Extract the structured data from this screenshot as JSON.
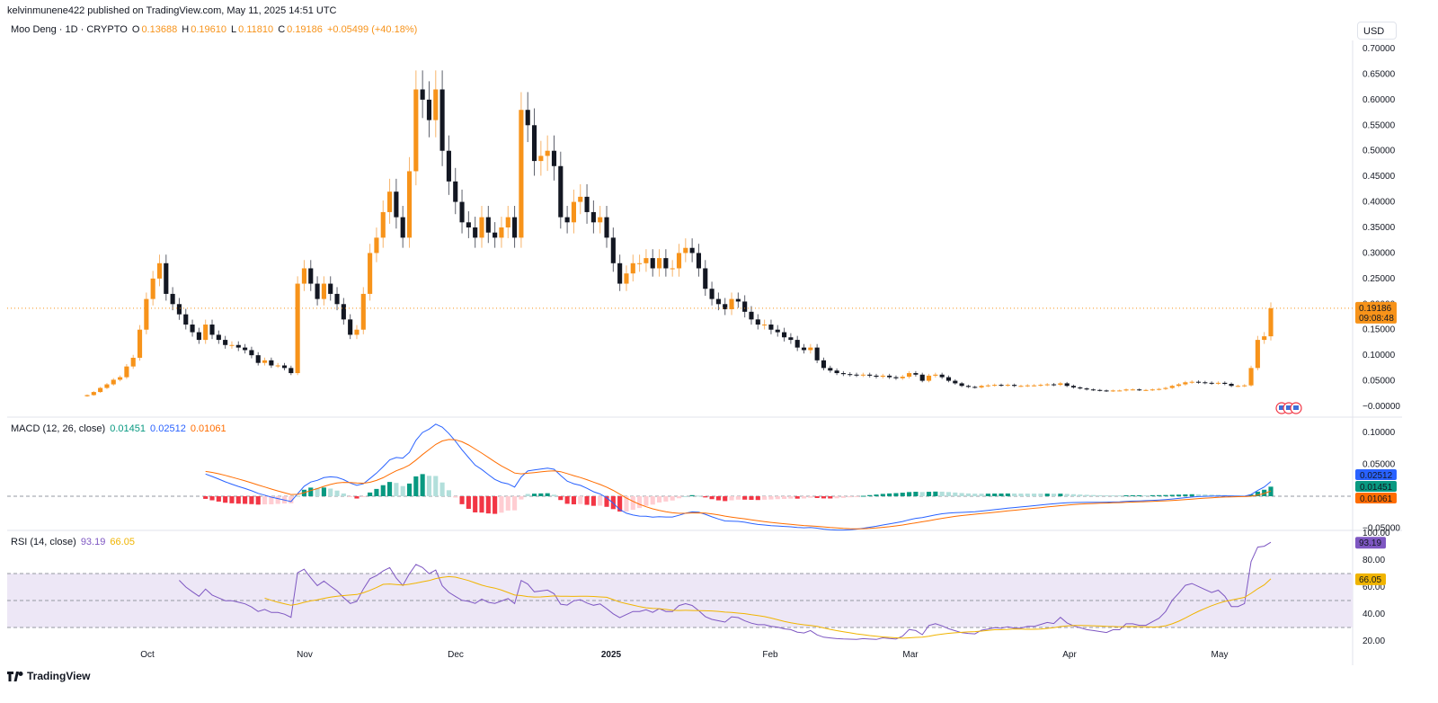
{
  "header": {
    "publisher_line": "kelvinmunene422 published on TradingView.com, May 11, 2025 14:51 UTC"
  },
  "main_legend": {
    "symbol": "Moo Deng · 1D · CRYPTO",
    "o_label": "O",
    "o": "0.13688",
    "h_label": "H",
    "h": "0.19610",
    "l_label": "L",
    "l": "0.11810",
    "c_label": "C",
    "c": "0.19186",
    "change": "+0.05499 (+40.18%)"
  },
  "currency": "USD",
  "price_axis_ticks": [
    "0.70000",
    "0.65000",
    "0.60000",
    "0.55000",
    "0.50000",
    "0.45000",
    "0.40000",
    "0.35000",
    "0.30000",
    "0.25000",
    "0.20000",
    "0.15000",
    "0.10000",
    "0.05000",
    "−0.00000"
  ],
  "last_price": {
    "value": "0.19186",
    "countdown": "09:08:48"
  },
  "macd_legend": {
    "label": "MACD (12, 26, close)",
    "hist": "0.01451",
    "macd": "0.02512",
    "signal": "0.01061"
  },
  "macd_axis_ticks": [
    "0.10000",
    "0.05000",
    "−0.05000"
  ],
  "macd_badges": {
    "macd": "0.02512",
    "hist": "0.01451",
    "signal": "0.01061"
  },
  "rsi_legend": {
    "label": "RSI (14, close)",
    "rsi": "93.19",
    "ma": "66.05"
  },
  "rsi_axis_ticks": [
    "100.00",
    "80.00",
    "60.00",
    "40.00",
    "20.00"
  ],
  "rsi_badges": {
    "rsi": "93.19",
    "ma": "66.05"
  },
  "date_labels": [
    "Oct",
    "Nov",
    "Dec",
    "2025",
    "Feb",
    "Mar",
    "Apr",
    "May"
  ],
  "footer": {
    "brand": "TradingView"
  },
  "colors": {
    "up": "#f7931a",
    "down": "#131722",
    "macd": "#2962ff",
    "signal": "#ff6d00",
    "hist_up": "#089981",
    "hist_down": "#f23645",
    "rsi": "#7e57c2",
    "rsi_ma": "#f0b400",
    "rsi_band": "#ede7f6"
  },
  "chart_data": {
    "type": "candlestick",
    "candles_close": [
      0.022,
      0.028,
      0.036,
      0.043,
      0.052,
      0.057,
      0.078,
      0.095,
      0.15,
      0.21,
      0.25,
      0.28,
      0.22,
      0.2,
      0.18,
      0.16,
      0.145,
      0.13,
      0.16,
      0.14,
      0.13,
      0.12,
      0.12,
      0.115,
      0.11,
      0.1,
      0.085,
      0.09,
      0.08,
      0.08,
      0.075,
      0.065,
      0.24,
      0.27,
      0.24,
      0.21,
      0.24,
      0.22,
      0.2,
      0.17,
      0.14,
      0.15,
      0.22,
      0.3,
      0.33,
      0.38,
      0.42,
      0.37,
      0.33,
      0.46,
      0.62,
      0.6,
      0.56,
      0.62,
      0.5,
      0.44,
      0.4,
      0.36,
      0.35,
      0.33,
      0.37,
      0.34,
      0.33,
      0.35,
      0.37,
      0.33,
      0.58,
      0.55,
      0.48,
      0.49,
      0.5,
      0.47,
      0.37,
      0.36,
      0.4,
      0.41,
      0.38,
      0.36,
      0.37,
      0.33,
      0.28,
      0.24,
      0.26,
      0.28,
      0.28,
      0.29,
      0.27,
      0.29,
      0.27,
      0.27,
      0.3,
      0.31,
      0.3,
      0.27,
      0.23,
      0.21,
      0.2,
      0.19,
      0.21,
      0.205,
      0.185,
      0.17,
      0.16,
      0.16,
      0.15,
      0.145,
      0.135,
      0.13,
      0.115,
      0.11,
      0.115,
      0.09,
      0.075,
      0.07,
      0.065,
      0.063,
      0.062,
      0.061,
      0.062,
      0.06,
      0.058,
      0.06,
      0.057,
      0.055,
      0.058,
      0.065,
      0.062,
      0.05,
      0.06,
      0.062,
      0.057,
      0.05,
      0.045,
      0.04,
      0.038,
      0.037,
      0.04,
      0.041,
      0.042,
      0.041,
      0.042,
      0.04,
      0.04,
      0.041,
      0.041,
      0.042,
      0.043,
      0.042,
      0.045,
      0.04,
      0.037,
      0.035,
      0.033,
      0.032,
      0.031,
      0.03,
      0.031,
      0.031,
      0.033,
      0.033,
      0.032,
      0.032,
      0.033,
      0.034,
      0.036,
      0.04,
      0.043,
      0.047,
      0.048,
      0.047,
      0.046,
      0.045,
      0.046,
      0.044,
      0.04,
      0.04,
      0.041,
      0.075,
      0.13,
      0.137,
      0.19186
    ],
    "date_labels": [
      "Oct",
      "Nov",
      "Dec",
      "2025",
      "Feb",
      "Mar",
      "Apr",
      "May"
    ],
    "y_range": [
      0.0,
      0.7
    ],
    "macd_range": [
      -0.05,
      0.1
    ],
    "rsi_range": [
      20,
      100
    ],
    "rsi_bands": [
      70,
      50,
      30
    ],
    "current": {
      "open": 0.13688,
      "high": 0.1961,
      "low": 0.1181,
      "close": 0.19186,
      "change": 0.05499,
      "change_pct": 40.18
    },
    "macd_current": {
      "histogram": 0.01451,
      "macd": 0.02512,
      "signal": 0.01061
    },
    "rsi_current": {
      "rsi": 93.19,
      "ma": 66.05
    }
  }
}
